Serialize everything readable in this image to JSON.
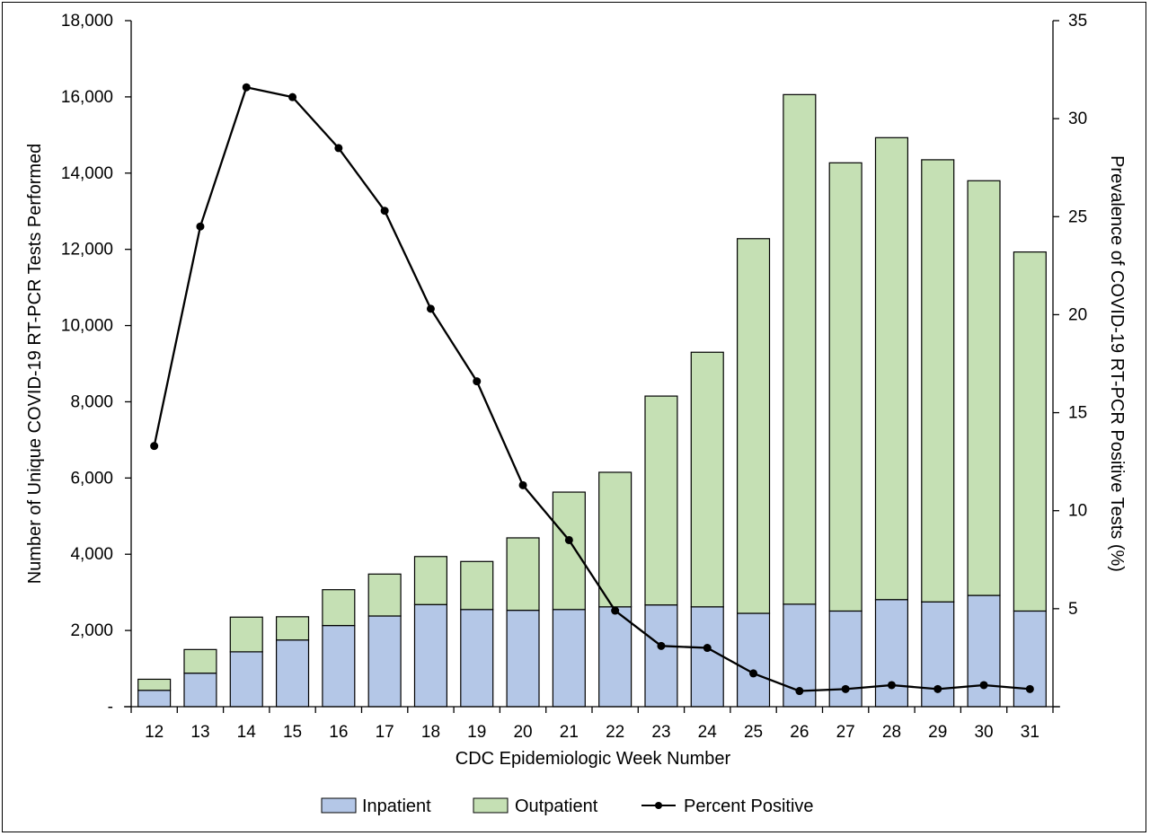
{
  "chart_data": {
    "type": "bar",
    "stacked": true,
    "categories": [
      "12",
      "13",
      "14",
      "15",
      "16",
      "17",
      "18",
      "19",
      "20",
      "21",
      "22",
      "23",
      "24",
      "25",
      "26",
      "27",
      "28",
      "29",
      "30",
      "31"
    ],
    "series": [
      {
        "name": "Inpatient",
        "kind": "bar",
        "axis": "left",
        "color": "#b4c7e7",
        "values": [
          430,
          880,
          1440,
          1750,
          2130,
          2380,
          2680,
          2550,
          2530,
          2550,
          2620,
          2670,
          2620,
          2450,
          2690,
          2510,
          2810,
          2750,
          2920,
          2510
        ]
      },
      {
        "name": "Outpatient",
        "kind": "bar",
        "axis": "left",
        "color": "#c5e0b4",
        "values": [
          290,
          620,
          910,
          610,
          940,
          1100,
          1260,
          1260,
          1900,
          3080,
          3530,
          5480,
          6680,
          9830,
          13370,
          11760,
          12120,
          11600,
          10880,
          9420
        ]
      },
      {
        "name": "Percent Positive",
        "kind": "line",
        "axis": "right",
        "color": "#000000",
        "values": [
          13.3,
          24.5,
          31.6,
          31.1,
          28.5,
          25.3,
          20.3,
          16.6,
          11.3,
          8.5,
          4.9,
          3.1,
          3.0,
          1.7,
          0.8,
          0.9,
          1.1,
          0.9,
          1.1,
          0.9
        ]
      }
    ],
    "xlabel": "CDC Epidemiologic Week Number",
    "ylabel": "Number of Unique COVID-19 RT-PCR Tests Performed",
    "y2label": "Prevalence of COVID-19 RT-PCR Positive Tests (%)",
    "ylim": [
      0,
      18000
    ],
    "y2lim": [
      0,
      35
    ],
    "yticks": [
      "-",
      "2,000",
      "4,000",
      "6,000",
      "8,000",
      "10,000",
      "12,000",
      "14,000",
      "16,000",
      "18,000"
    ],
    "y2ticks": [
      "",
      "5",
      "10",
      "15",
      "20",
      "25",
      "30",
      "35"
    ],
    "grid": false,
    "legend_position": "bottom"
  }
}
